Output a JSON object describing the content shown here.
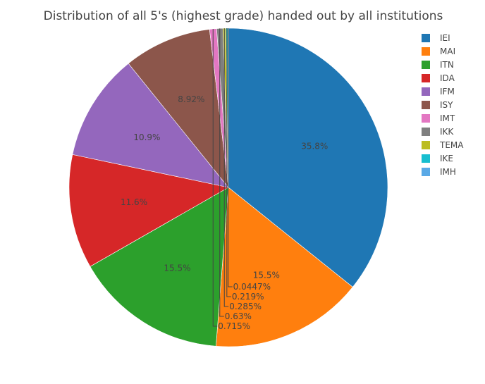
{
  "chart_data": {
    "type": "pie",
    "title": "Distribution of all 5's (highest grade) handed out by all institutions",
    "labels": [
      "IEI",
      "MAI",
      "ITN",
      "IDA",
      "IFM",
      "ISY",
      "IMT",
      "IKK",
      "TEMA",
      "IKE",
      "IMH"
    ],
    "values": [
      35.8,
      15.5,
      15.5,
      11.6,
      10.9,
      8.92,
      0.715,
      0.63,
      0.285,
      0.219,
      0.0447
    ],
    "value_labels": [
      "35.8%",
      "15.5%",
      "15.5%",
      "11.6%",
      "10.9%",
      "8.92%",
      "0.715%",
      "0.63%",
      "0.285%",
      "0.219%",
      "0.0447%"
    ],
    "colors": [
      "#1f77b4",
      "#ff7f0e",
      "#2ca02c",
      "#d62728",
      "#9467bd",
      "#8c564b",
      "#e377c2",
      "#7f7f7f",
      "#bcbd22",
      "#17becf",
      "#5aa9e6"
    ],
    "direction": "clockwise",
    "legend_position": "right"
  }
}
